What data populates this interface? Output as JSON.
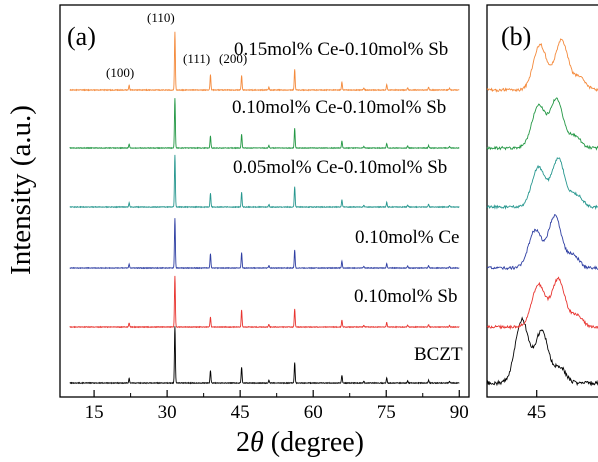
{
  "figure": {
    "ylabel": "Intensity (a.u.)",
    "xlabel_prefix": "2",
    "xlabel_theta": "θ",
    "xlabel_suffix": " (degree)"
  },
  "chart_data": [
    {
      "type": "line",
      "panel_label": "(a)",
      "xlabel": "2θ (degree)",
      "ylabel": "Intensity (a.u.)",
      "xlim": [
        8,
        92
      ],
      "xticks": [
        15,
        30,
        45,
        60,
        75,
        90
      ],
      "yticks_shown": false,
      "grid": false,
      "legend": "none (samples labeled directly above each trace)",
      "peak_labels": [
        {
          "text": "(100)",
          "x": 22.2
        },
        {
          "text": "(110)",
          "x": 31.6
        },
        {
          "text": "(111)",
          "x": 38.9
        },
        {
          "text": "(200)",
          "x": 45.3
        }
      ],
      "peaks": [
        {
          "x": 22.2,
          "height": 0.08
        },
        {
          "x": 31.6,
          "height": 1.0
        },
        {
          "x": 38.9,
          "height": 0.22
        },
        {
          "x": 45.3,
          "height": 0.28
        },
        {
          "x": 50.9,
          "height": 0.05
        },
        {
          "x": 56.2,
          "height": 0.36
        },
        {
          "x": 65.9,
          "height": 0.14
        },
        {
          "x": 70.4,
          "height": 0.03
        },
        {
          "x": 75.1,
          "height": 0.09
        },
        {
          "x": 79.4,
          "height": 0.04
        },
        {
          "x": 83.7,
          "height": 0.05
        },
        {
          "x": 88.0,
          "height": 0.03
        }
      ],
      "series": [
        {
          "name": "BCZT",
          "color": "#000000"
        },
        {
          "name": "0.10mol% Sb",
          "color": "#e8342f"
        },
        {
          "name": "0.10mol% Ce",
          "color": "#2f3fa3"
        },
        {
          "name": "0.05mol% Ce-0.10mol% Sb",
          "color": "#27978f"
        },
        {
          "name": "0.10mol% Ce-0.10mol% Sb",
          "color": "#249845"
        },
        {
          "name": "0.15mol% Ce-0.10mol% Sb",
          "color": "#f48a3c"
        }
      ]
    },
    {
      "type": "line",
      "panel_label": "(b)",
      "description": "zoomed region around the (200) peak",
      "xlim": [
        43.5,
        47
      ],
      "xticks": [
        45
      ],
      "grid": false,
      "series": [
        {
          "name": "BCZT",
          "color": "#000000"
        },
        {
          "name": "0.10mol% Sb",
          "color": "#e8342f"
        },
        {
          "name": "0.10mol% Ce",
          "color": "#2f3fa3"
        },
        {
          "name": "0.05mol% Ce-0.10mol% Sb",
          "color": "#27978f"
        },
        {
          "name": "0.10mol% Ce-0.10mol% Sb",
          "color": "#249845"
        },
        {
          "name": "0.15mol% Ce-0.10mol% Sb",
          "color": "#f48a3c"
        }
      ]
    }
  ]
}
